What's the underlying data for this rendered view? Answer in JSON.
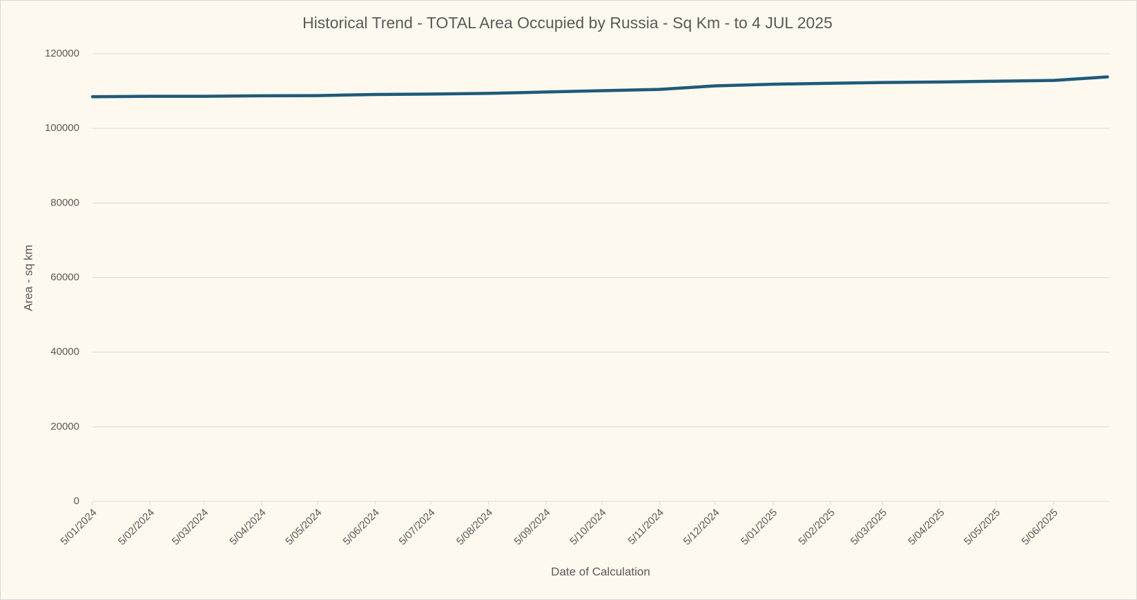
{
  "chart_data": {
    "type": "line",
    "title": "Historical Trend - TOTAL Area Occupied by Russia - Sq Km - to 4 JUL 2025",
    "x_label": "Date of Calculation",
    "y_label": "Area - sq km",
    "x": [
      "2024-01-05",
      "2024-02-05",
      "2024-03-05",
      "2024-04-05",
      "2024-05-05",
      "2024-06-05",
      "2024-07-05",
      "2024-08-05",
      "2024-09-05",
      "2024-10-05",
      "2024-11-05",
      "2024-12-05",
      "2025-01-05",
      "2025-02-05",
      "2025-03-05",
      "2025-04-05",
      "2025-05-05",
      "2025-06-05",
      "2025-07-04"
    ],
    "series": [
      {
        "name": "Area - sq km",
        "color": "#1f5a7a",
        "values": [
          108500,
          108600,
          108600,
          108750,
          108800,
          109100,
          109200,
          109400,
          109750,
          110100,
          110450,
          111400,
          111850,
          112100,
          112300,
          112450,
          112650,
          112850,
          113800
        ]
      }
    ],
    "xlim": [
      "2024-01-05",
      "2025-07-05"
    ],
    "xticks": [
      {
        "value": "2024-01-05",
        "label": "5/01/2024"
      },
      {
        "value": "2024-02-05",
        "label": "5/02/2024"
      },
      {
        "value": "2024-03-05",
        "label": "5/03/2024"
      },
      {
        "value": "2024-04-05",
        "label": "5/04/2024"
      },
      {
        "value": "2024-05-05",
        "label": "5/05/2024"
      },
      {
        "value": "2024-06-05",
        "label": "5/06/2024"
      },
      {
        "value": "2024-07-05",
        "label": "5/07/2024"
      },
      {
        "value": "2024-08-05",
        "label": "5/08/2024"
      },
      {
        "value": "2024-09-05",
        "label": "5/09/2024"
      },
      {
        "value": "2024-10-05",
        "label": "5/10/2024"
      },
      {
        "value": "2024-11-05",
        "label": "5/11/2024"
      },
      {
        "value": "2024-12-05",
        "label": "5/12/2024"
      },
      {
        "value": "2025-01-05",
        "label": "5/01/2025"
      },
      {
        "value": "2025-02-05",
        "label": "5/02/2025"
      },
      {
        "value": "2025-03-05",
        "label": "5/03/2025"
      },
      {
        "value": "2025-04-05",
        "label": "5/04/2025"
      },
      {
        "value": "2025-05-05",
        "label": "5/05/2025"
      },
      {
        "value": "2025-06-05",
        "label": "5/06/2025"
      }
    ],
    "ylim": [
      0,
      120000
    ],
    "yticks": [
      0,
      20000,
      40000,
      60000,
      80000,
      100000,
      120000
    ],
    "grid": true
  }
}
